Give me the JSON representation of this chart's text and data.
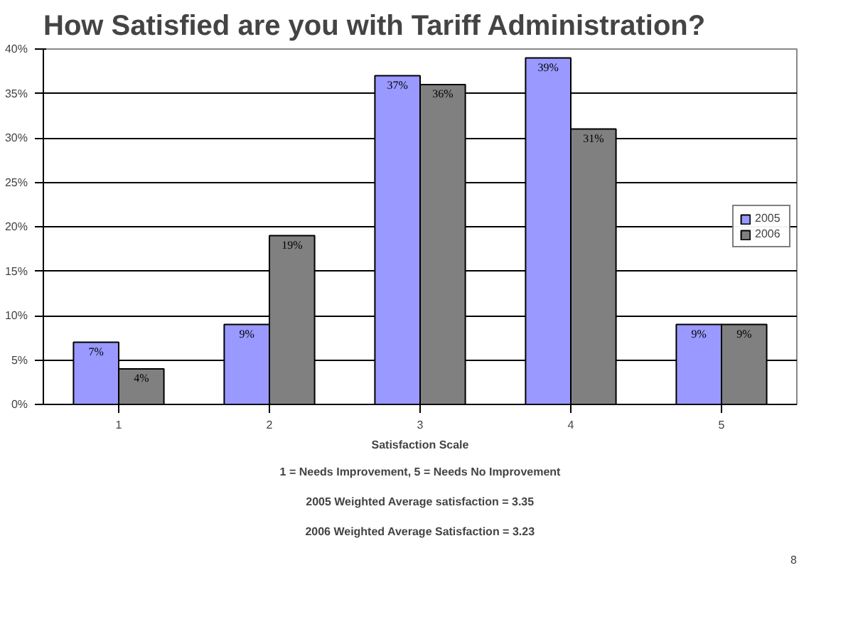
{
  "chart_data": {
    "type": "bar",
    "title": "How Satisfied are you with Tariff Administration?",
    "xlabel": "Satisfaction Scale",
    "categories": [
      "1",
      "2",
      "3",
      "4",
      "5"
    ],
    "series": [
      {
        "name": "2005",
        "color": "#9999ff",
        "values": [
          7,
          9,
          37,
          39,
          9
        ],
        "value_labels": [
          "7%",
          "9%",
          "37%",
          "39%",
          "9%"
        ]
      },
      {
        "name": "2006",
        "color": "#808080",
        "values": [
          4,
          19,
          36,
          31,
          9
        ],
        "value_labels": [
          "4%",
          "19%",
          "36%",
          "31%",
          "9%"
        ]
      }
    ],
    "ylim": [
      0,
      40
    ],
    "yticks": [
      {
        "value": 0,
        "label": "0%"
      },
      {
        "value": 5,
        "label": "5%"
      },
      {
        "value": 10,
        "label": "10%"
      },
      {
        "value": 15,
        "label": "15%"
      },
      {
        "value": 20,
        "label": "20%"
      },
      {
        "value": 25,
        "label": "25%"
      },
      {
        "value": 30,
        "label": "30%"
      },
      {
        "value": 35,
        "label": "35%"
      },
      {
        "value": 40,
        "label": "40%"
      }
    ],
    "grid": "y",
    "legend": "right",
    "annotations": [
      "1 = Needs Improvement, 5 = Needs No Improvement",
      "2005 Weighted Average satisfaction = 3.35",
      "2006 Weighted Average Satisfaction = 3.23",
      "8"
    ]
  }
}
